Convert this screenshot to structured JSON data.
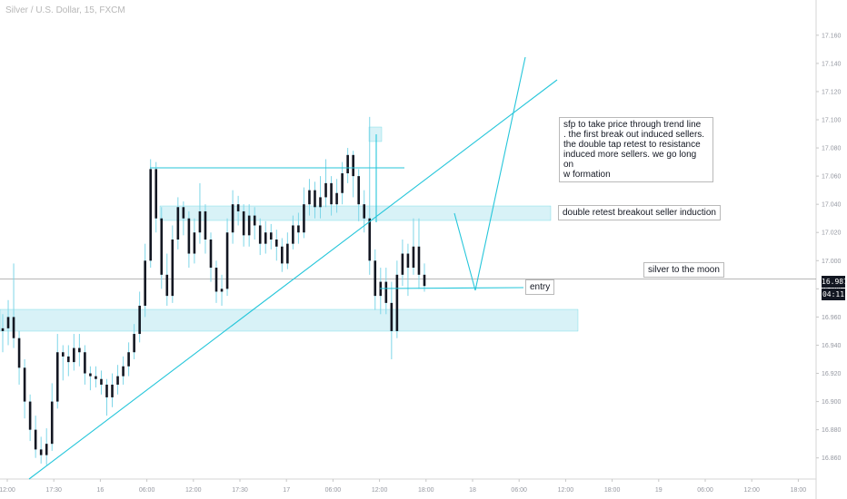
{
  "header": {
    "symbol_title": "Silver / U.S. Dollar, 15, FXCM"
  },
  "price_axis": {
    "current_price": "16.987",
    "countdown": "04:11"
  },
  "annotations": {
    "sfp_note": "sfp to take price through trend line\n. the first break out induced sellers.\nthe double tap retest to resistance\ninduced more sellers. we go long on\nw formation",
    "retest_note": "double retest breakout seller induction",
    "moon_note": "silver to the moon",
    "entry_note": "entry"
  },
  "colors": {
    "accent": "#26c6da",
    "zone_fill": "#d4f1f7",
    "candle": "#131722",
    "wick": "#7ed6e8",
    "price_tag": "#131722"
  },
  "chart_data": {
    "type": "candlestick",
    "symbol": "Silver / U.S. Dollar",
    "interval": "15",
    "source": "FXCM",
    "x_ticks": [
      "12:00",
      "17:30",
      "16",
      "06:00",
      "12:00",
      "17:30",
      "17",
      "06:00",
      "12:00",
      "18:00",
      "18",
      "06:00",
      "12:00",
      "18:00",
      "19",
      "06:00",
      "12:00",
      "18:00"
    ],
    "y_ticks": [
      17.16,
      17.14,
      17.12,
      17.1,
      17.08,
      17.06,
      17.04,
      17.02,
      17.0,
      16.98,
      16.96,
      16.94,
      16.92,
      16.9,
      16.88,
      16.86
    ],
    "ylim": [
      16.845,
      17.185
    ],
    "last_price": 16.987,
    "candles": [
      [
        16.95,
        16.952,
        16.935,
        16.962
      ],
      [
        16.952,
        16.96,
        16.94,
        16.972
      ],
      [
        16.96,
        16.945,
        16.938,
        16.998
      ],
      [
        16.945,
        16.924,
        16.912,
        16.95
      ],
      [
        16.924,
        16.9,
        16.888,
        16.93
      ],
      [
        16.9,
        16.88,
        16.872,
        16.905
      ],
      [
        16.88,
        16.866,
        16.86,
        16.89
      ],
      [
        16.866,
        16.862,
        16.856,
        16.875
      ],
      [
        16.862,
        16.87,
        16.855,
        16.881
      ],
      [
        16.87,
        16.9,
        16.865,
        16.913
      ],
      [
        16.9,
        16.935,
        16.895,
        16.948
      ],
      [
        16.935,
        16.932,
        16.915,
        16.94
      ],
      [
        16.932,
        16.928,
        16.918,
        16.94
      ],
      [
        16.928,
        16.938,
        16.922,
        16.948
      ],
      [
        16.938,
        16.935,
        16.925,
        16.948
      ],
      [
        16.935,
        16.92,
        16.912,
        16.94
      ],
      [
        16.92,
        16.918,
        16.908,
        16.925
      ],
      [
        16.918,
        16.916,
        16.91,
        16.925
      ],
      [
        16.916,
        16.912,
        16.905,
        16.922
      ],
      [
        16.912,
        16.903,
        16.89,
        16.916
      ],
      [
        16.903,
        16.912,
        16.896,
        16.92
      ],
      [
        16.912,
        16.918,
        16.905,
        16.926
      ],
      [
        16.918,
        16.925,
        16.912,
        16.932
      ],
      [
        16.925,
        16.935,
        16.918,
        16.942
      ],
      [
        16.935,
        16.948,
        16.93,
        16.955
      ],
      [
        16.948,
        16.968,
        16.942,
        16.978
      ],
      [
        16.968,
        17.0,
        16.96,
        17.012
      ],
      [
        17.0,
        17.065,
        16.995,
        17.072
      ],
      [
        17.065,
        17.03,
        17.02,
        17.07
      ],
      [
        17.03,
        16.99,
        16.98,
        17.038
      ],
      [
        16.99,
        16.975,
        16.968,
        17.005
      ],
      [
        16.975,
        17.015,
        16.97,
        17.025
      ],
      [
        17.015,
        17.038,
        17.008,
        17.045
      ],
      [
        17.038,
        17.03,
        17.018,
        17.042
      ],
      [
        17.03,
        17.005,
        16.995,
        17.035
      ],
      [
        17.005,
        17.02,
        16.998,
        17.03
      ],
      [
        17.02,
        17.035,
        17.012,
        17.055
      ],
      [
        17.035,
        17.015,
        17.005,
        17.04
      ],
      [
        17.015,
        16.995,
        16.985,
        17.02
      ],
      [
        16.995,
        16.978,
        16.97,
        17.0
      ],
      [
        16.978,
        16.98,
        16.968,
        16.99
      ],
      [
        16.98,
        17.02,
        16.975,
        17.03
      ],
      [
        17.02,
        17.04,
        17.012,
        17.05
      ],
      [
        17.04,
        17.035,
        17.025,
        17.046
      ],
      [
        17.035,
        17.018,
        17.01,
        17.04
      ],
      [
        17.018,
        17.032,
        17.01,
        17.04
      ],
      [
        17.032,
        17.025,
        17.015,
        17.038
      ],
      [
        17.025,
        17.012,
        17.004,
        17.03
      ],
      [
        17.012,
        17.02,
        17.005,
        17.028
      ],
      [
        17.02,
        17.015,
        17.008,
        17.026
      ],
      [
        17.015,
        17.01,
        17.0,
        17.022
      ],
      [
        17.01,
        16.998,
        16.992,
        17.016
      ],
      [
        16.998,
        17.012,
        16.994,
        17.02
      ],
      [
        17.012,
        17.025,
        17.008,
        17.032
      ],
      [
        17.025,
        17.02,
        17.012,
        17.034
      ],
      [
        17.02,
        17.04,
        17.016,
        17.052
      ],
      [
        17.04,
        17.05,
        17.032,
        17.058
      ],
      [
        17.05,
        17.038,
        17.03,
        17.056
      ],
      [
        17.038,
        17.045,
        17.03,
        17.06
      ],
      [
        17.045,
        17.055,
        17.038,
        17.072
      ],
      [
        17.055,
        17.04,
        17.032,
        17.06
      ],
      [
        17.04,
        17.048,
        17.034,
        17.058
      ],
      [
        17.048,
        17.062,
        17.04,
        17.07
      ],
      [
        17.062,
        17.075,
        17.055,
        17.08
      ],
      [
        17.075,
        17.06,
        17.045,
        17.078
      ],
      [
        17.06,
        17.04,
        17.028,
        17.065
      ],
      [
        17.04,
        17.03,
        17.02,
        17.05
      ],
      [
        17.03,
        17.0,
        16.99,
        17.102
      ],
      [
        17.0,
        16.975,
        16.965,
        17.008
      ],
      [
        16.975,
        16.985,
        16.962,
        16.995
      ],
      [
        16.985,
        16.97,
        16.962,
        16.995
      ],
      [
        16.97,
        16.95,
        16.93,
        16.985
      ],
      [
        16.95,
        16.99,
        16.945,
        17.0
      ],
      [
        16.99,
        17.005,
        16.982,
        17.015
      ],
      [
        17.005,
        16.995,
        16.975,
        17.012
      ],
      [
        16.995,
        17.01,
        16.99,
        17.03
      ],
      [
        17.01,
        16.99,
        16.98,
        17.03
      ],
      [
        16.99,
        16.982,
        16.978,
        16.998
      ]
    ]
  }
}
